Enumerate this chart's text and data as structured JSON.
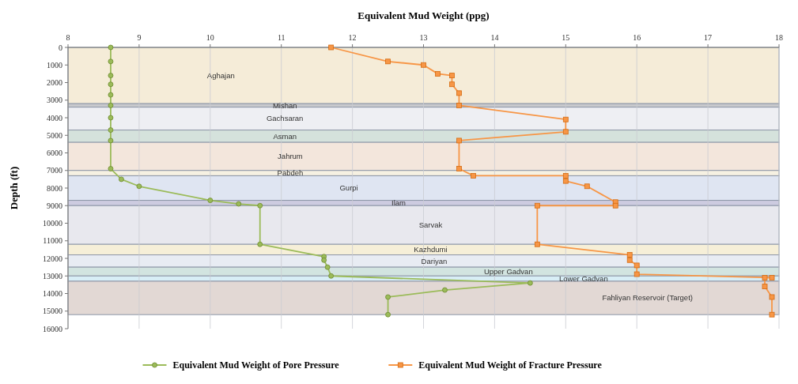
{
  "chart_data": {
    "type": "line",
    "xlabel": "Equivalent Mud Weight (ppg)",
    "ylabel": "Depth (ft)",
    "xlim": [
      8,
      18
    ],
    "xticks": [
      8,
      9,
      10,
      11,
      12,
      13,
      14,
      15,
      16,
      17,
      18
    ],
    "ylim": [
      16000,
      0
    ],
    "yticks": [
      0,
      1000,
      2000,
      3000,
      4000,
      5000,
      6000,
      7000,
      8000,
      9000,
      10000,
      11000,
      12000,
      13000,
      14000,
      15000,
      16000
    ],
    "grid": "x",
    "legend": "bottom",
    "series": [
      {
        "name": "Equivalent Mud Weight of Pore Pressure",
        "color": "#9bbb59",
        "marker": "circle",
        "x": [
          8.6,
          8.6,
          8.6,
          8.6,
          8.6,
          8.6,
          8.6,
          8.6,
          8.6,
          8.6,
          8.75,
          9.0,
          10.0,
          10.4,
          10.7,
          10.7,
          11.6,
          11.6,
          11.65,
          11.7,
          14.5,
          13.3,
          12.5,
          12.5
        ],
        "values": [
          0,
          800,
          1600,
          2100,
          2700,
          3300,
          4000,
          4700,
          5300,
          6900,
          7500,
          7900,
          8700,
          8900,
          9000,
          11200,
          11900,
          12100,
          12500,
          13000,
          13400,
          13800,
          14200,
          15200
        ]
      },
      {
        "name": "Equivalent Mud Weight of Fracture Pressure",
        "color": "#f79646",
        "marker": "square",
        "x": [
          11.7,
          12.5,
          13.0,
          13.2,
          13.4,
          13.4,
          13.5,
          13.5,
          15.0,
          15.0,
          13.5,
          13.5,
          13.7,
          15.0,
          15.0,
          15.3,
          15.7,
          15.7,
          14.6,
          14.6,
          15.9,
          15.9,
          16.0,
          16.0,
          17.9,
          17.8,
          17.8,
          17.9,
          17.9
        ],
        "values": [
          0,
          800,
          1000,
          1500,
          1600,
          2100,
          2600,
          3300,
          4100,
          4800,
          5300,
          6900,
          7300,
          7300,
          7600,
          7900,
          8800,
          9000,
          9000,
          11200,
          11800,
          12100,
          12400,
          12900,
          13100,
          13100,
          13600,
          14200,
          15200
        ]
      }
    ],
    "bands": [
      {
        "axis": "y",
        "from": 0,
        "to": 3200,
        "label": "Aghajan",
        "color": "#f5ecd8"
      },
      {
        "axis": "y",
        "from": 3200,
        "to": 3400,
        "label": "Mishan",
        "color": "#c8c9cc"
      },
      {
        "axis": "y",
        "from": 3400,
        "to": 4700,
        "label": "Gachsaran",
        "color": "#eeeff3"
      },
      {
        "axis": "y",
        "from": 4700,
        "to": 5400,
        "label": "Asman",
        "color": "#d5e2dc"
      },
      {
        "axis": "y",
        "from": 5400,
        "to": 7000,
        "label": "Jahrum",
        "color": "#f3e6dc"
      },
      {
        "axis": "y",
        "from": 7000,
        "to": 7300,
        "label": "Pabdeh",
        "color": "#f6f1e2"
      },
      {
        "axis": "y",
        "from": 7300,
        "to": 8700,
        "label": "Gurpi",
        "color": "#dfe5f2"
      },
      {
        "axis": "y",
        "from": 8700,
        "to": 9000,
        "label": "Ilam",
        "color": "#cdcbe0"
      },
      {
        "axis": "y",
        "from": 9000,
        "to": 11200,
        "label": "Sarvak",
        "color": "#e8e8ee"
      },
      {
        "axis": "y",
        "from": 11200,
        "to": 11800,
        "label": "Kazhdumi",
        "color": "#f6efd8"
      },
      {
        "axis": "y",
        "from": 11800,
        "to": 12500,
        "label": "Dariyan",
        "color": "#e8ecf3"
      },
      {
        "axis": "y",
        "from": 12500,
        "to": 13000,
        "label": "Upper Gadvan",
        "color": "#d2e4e0"
      },
      {
        "axis": "y",
        "from": 13000,
        "to": 13300,
        "label": "Lower Gadvan",
        "color": "#d8eef6"
      },
      {
        "axis": "y",
        "from": 13300,
        "to": 15200,
        "label": "Fahliyan Reservoir (Target)",
        "color": "#e2d8d4"
      }
    ]
  }
}
